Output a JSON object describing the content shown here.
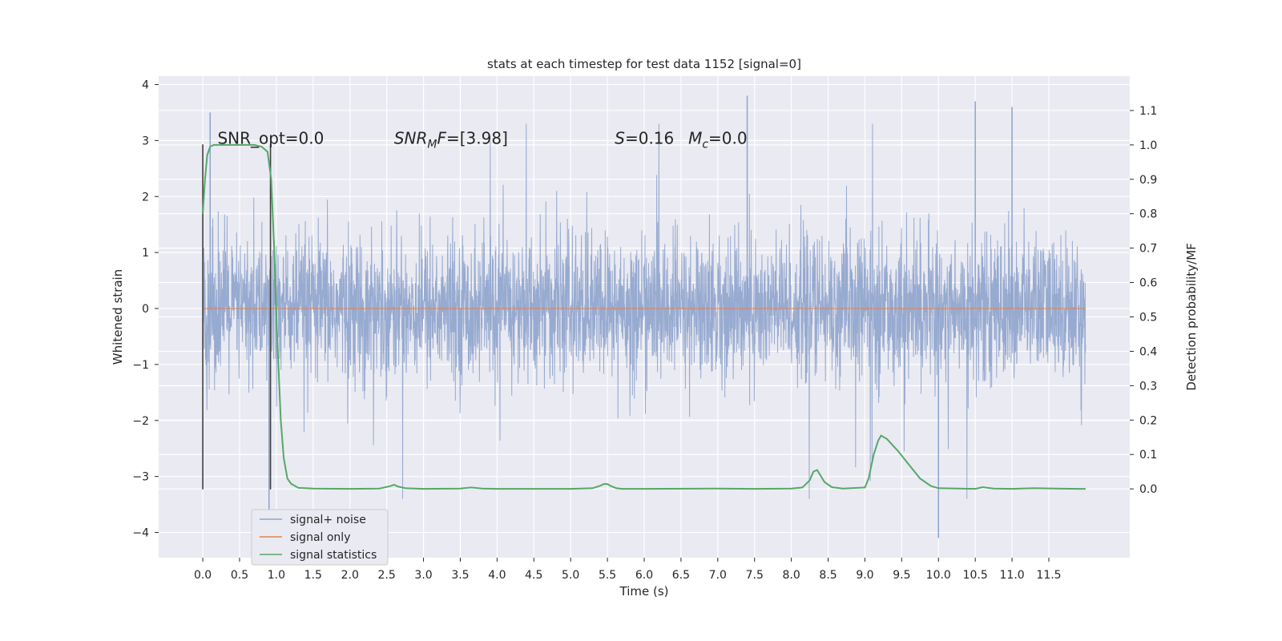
{
  "chart_data": {
    "type": "line",
    "title": "stats at each timestep for test data 1152 [signal=0]",
    "xlabel": "Time (s)",
    "ylabel_left": "Whitened strain",
    "ylabel_right": "Detection probability/MF",
    "xlim": [
      -0.6,
      12.6
    ],
    "ylim_left": [
      -4.45,
      4.15
    ],
    "ylim_right": [
      -0.2,
      1.2
    ],
    "x_ticks": [
      "0.0",
      "0.5",
      "1.0",
      "1.5",
      "2.0",
      "2.5",
      "3.0",
      "3.5",
      "4.0",
      "4.5",
      "5.0",
      "5.5",
      "6.0",
      "6.5",
      "7.0",
      "7.5",
      "8.0",
      "8.5",
      "9.0",
      "9.5",
      "10.0",
      "10.5",
      "11.0",
      "11.5"
    ],
    "y_ticks_left": [
      "−4",
      "−3",
      "−2",
      "−1",
      "0",
      "1",
      "2",
      "3",
      "4"
    ],
    "y_ticks_right": [
      "0.0",
      "0.1",
      "0.2",
      "0.3",
      "0.4",
      "0.5",
      "0.6",
      "0.7",
      "0.8",
      "0.9",
      "1.0",
      "1.1"
    ],
    "grid": true,
    "legend_position": "lower-left",
    "colors": {
      "noise": "#8ea3cc",
      "signal": "#dd8452",
      "stats": "#55a868",
      "background": "#eaeaf2",
      "grid": "#ffffff",
      "marker": "#404040"
    },
    "series": [
      {
        "name": "signal+ noise",
        "axis": "left",
        "x_range": [
          0.0,
          12.0
        ],
        "description_values": {
          "typical_envelope": [
            -1.4,
            1.1
          ],
          "peak_spikes": [
            {
              "x": 0.1,
              "y": 3.5
            },
            {
              "x": 0.9,
              "y": -3.7
            },
            {
              "x": 7.4,
              "y": 3.8
            },
            {
              "x": 10.0,
              "y": -4.1
            },
            {
              "x": 10.5,
              "y": 3.7
            },
            {
              "x": 11.0,
              "y": 3.6
            }
          ]
        }
      },
      {
        "name": "signal only",
        "axis": "left",
        "x": [
          0.0,
          12.0
        ],
        "y": [
          0.0,
          0.0
        ]
      },
      {
        "name": "signal statistics",
        "axis": "right",
        "x": [
          0.0,
          0.03,
          0.06,
          0.1,
          0.15,
          0.2,
          0.3,
          0.5,
          0.7,
          0.8,
          0.88,
          0.93,
          0.97,
          1.0,
          1.03,
          1.06,
          1.1,
          1.15,
          1.2,
          1.3,
          1.5,
          2.0,
          2.4,
          2.55,
          2.6,
          2.65,
          2.75,
          3.0,
          3.5,
          3.65,
          3.8,
          4.0,
          5.0,
          5.3,
          5.4,
          5.45,
          5.5,
          5.55,
          5.62,
          5.7,
          6.0,
          7.0,
          7.5,
          8.0,
          8.15,
          8.25,
          8.3,
          8.35,
          8.45,
          8.55,
          8.7,
          9.0,
          9.05,
          9.12,
          9.18,
          9.22,
          9.3,
          9.45,
          9.6,
          9.75,
          9.9,
          10.0,
          10.5,
          10.6,
          10.75,
          11.0,
          11.3,
          11.6,
          11.9,
          12.0
        ],
        "y": [
          0.8,
          0.9,
          0.97,
          0.995,
          1.0,
          1.0,
          1.0,
          1.0,
          1.0,
          0.995,
          0.98,
          0.9,
          0.7,
          0.5,
          0.35,
          0.2,
          0.09,
          0.03,
          0.015,
          0.003,
          0.001,
          0.0,
          0.001,
          0.008,
          0.012,
          0.007,
          0.002,
          0.0,
          0.001,
          0.004,
          0.001,
          0.0,
          0.0,
          0.002,
          0.009,
          0.014,
          0.014,
          0.008,
          0.002,
          0.0,
          0.0,
          0.001,
          0.0,
          0.001,
          0.004,
          0.025,
          0.05,
          0.055,
          0.02,
          0.005,
          0.001,
          0.004,
          0.03,
          0.1,
          0.14,
          0.155,
          0.145,
          0.11,
          0.07,
          0.03,
          0.008,
          0.002,
          0.0,
          0.005,
          0.001,
          0.0,
          0.002,
          0.001,
          0.0,
          0.0
        ]
      }
    ],
    "annotations": [
      {
        "text": "SNR_opt=0.0",
        "x": 0.2
      },
      {
        "text": "SNR_MF=[3.98]",
        "x": 2.6
      },
      {
        "text": "S=0.16",
        "x": 5.6
      },
      {
        "text": "M_c=0.0",
        "x": 6.6
      }
    ],
    "vertical_markers": [
      0.0,
      0.92
    ]
  }
}
